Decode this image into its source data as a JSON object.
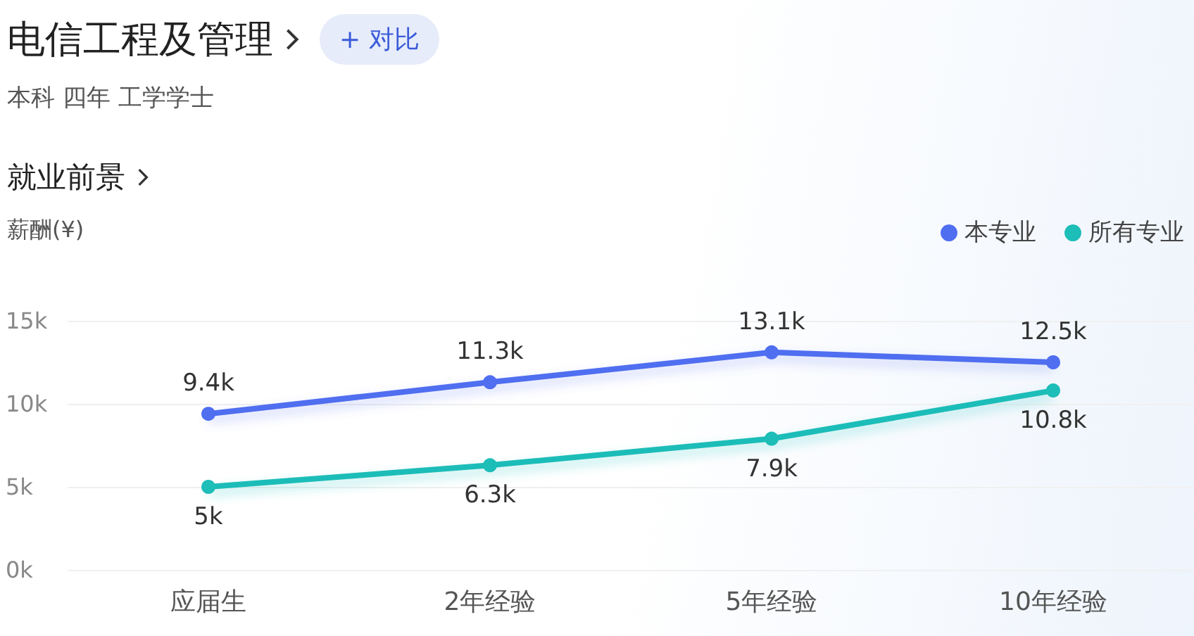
{
  "chart_data": {
    "type": "line",
    "title": "电信工程及管理",
    "subtitle": "本科 四年 工学学士",
    "annotations": [
      "+ 对比",
      "就业前景"
    ],
    "ylabel": "薪酬(¥)",
    "categories": [
      "应届生",
      "2年经验",
      "5年经验",
      "10年经验"
    ],
    "series": [
      {
        "name": "本专业",
        "color": "#4f6ef0",
        "values": [
          9.4,
          11.3,
          13.1,
          12.5
        ],
        "value_labels": [
          "9.4k",
          "11.3k",
          "13.1k",
          "12.5k"
        ]
      },
      {
        "name": "所有专业",
        "color": "#1dbdb8",
        "values": [
          5,
          6.3,
          7.9,
          10.8
        ],
        "value_labels": [
          "5k",
          "6.3k",
          "7.9k",
          "10.8k"
        ]
      }
    ],
    "ylim": [
      0,
      15
    ],
    "yticks": [
      {
        "value": 0,
        "label": "0k"
      },
      {
        "value": 5,
        "label": "5k"
      },
      {
        "value": 10,
        "label": "10k"
      },
      {
        "value": 15,
        "label": "15k"
      }
    ],
    "grid": "y",
    "legend": "top right",
    "marker": "circle",
    "line_style": "solid"
  }
}
